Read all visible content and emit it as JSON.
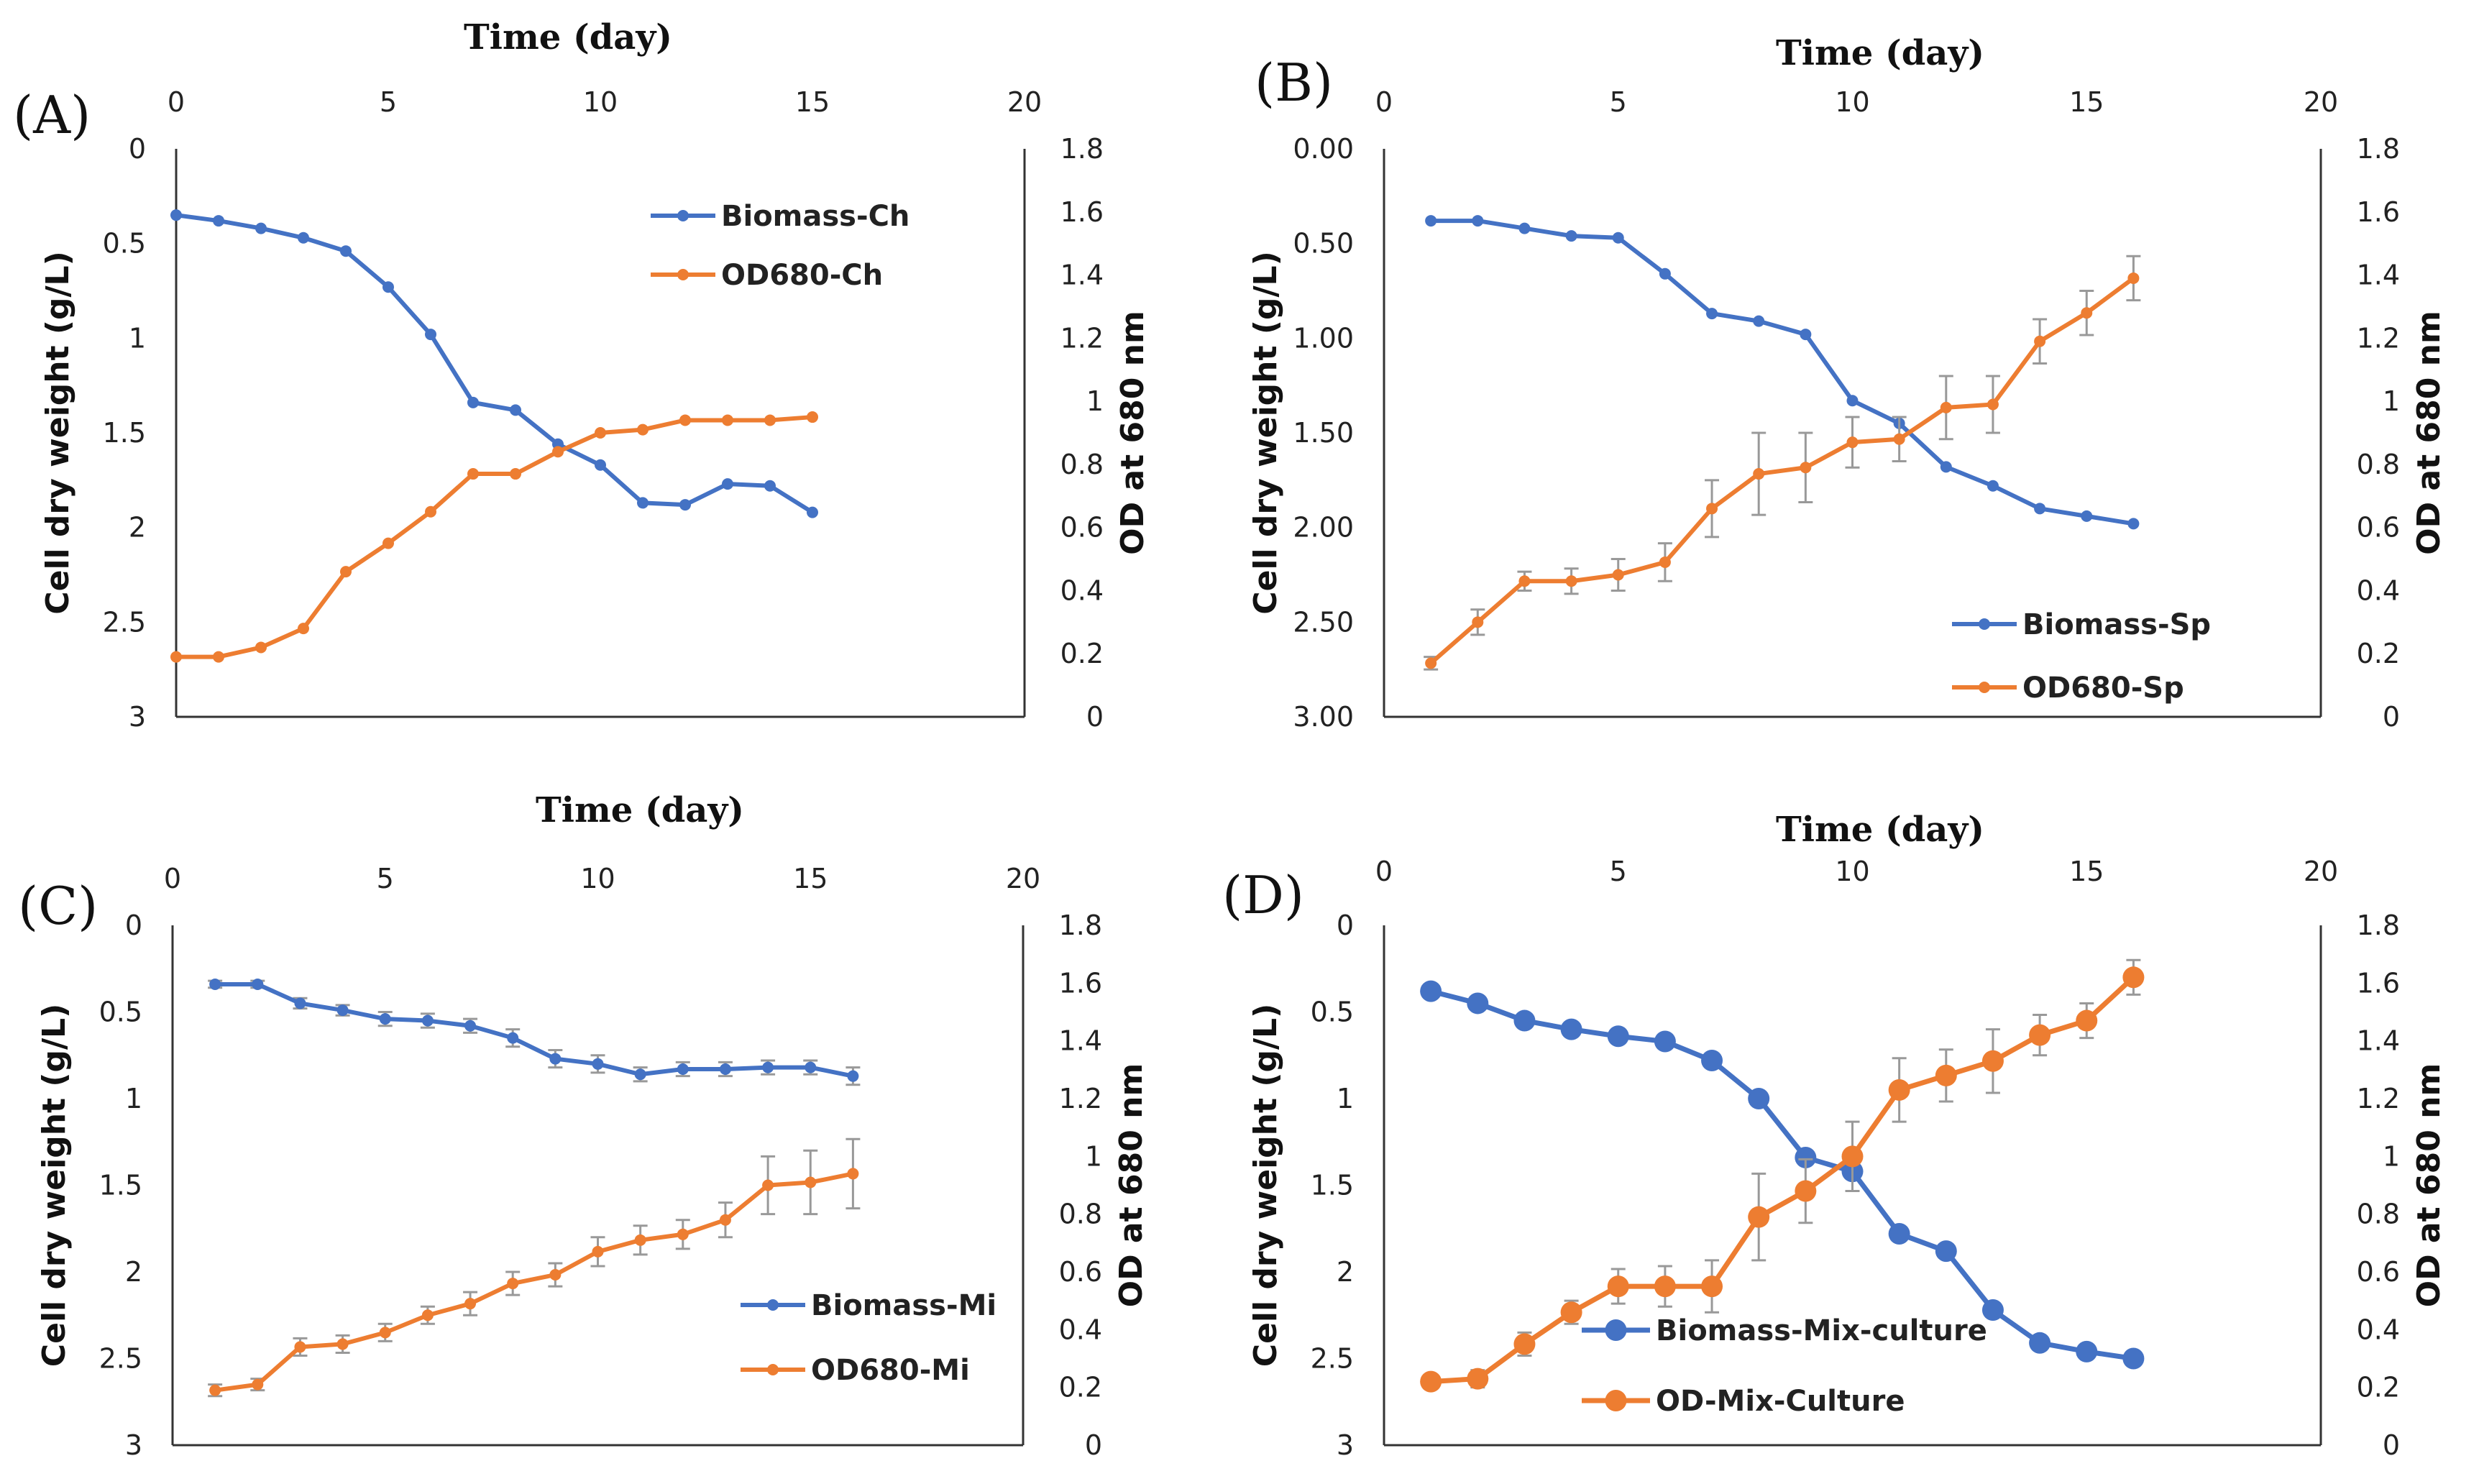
{
  "colors": {
    "biomass": "#4472C4",
    "od": "#ED7D31",
    "errorbar": "#999999"
  },
  "chart_data": [
    {
      "type": "line",
      "panel_label": "(A)",
      "title": "Time (day)",
      "xlabel": "Time (day)",
      "ylabel": "Cell dry weight (g/L)",
      "y2label": "OD at 680 nm",
      "xlim": [
        0,
        20
      ],
      "xticks": [
        "0",
        "5",
        "10",
        "15",
        "20"
      ],
      "ylim": [
        0,
        3
      ],
      "yinverted": true,
      "yticks": [
        "0",
        "0.5",
        "1",
        "1.5",
        "2",
        "2.5",
        "3"
      ],
      "y2lim": [
        0,
        1.8
      ],
      "y2ticks": [
        "0",
        "0.2",
        "0.4",
        "0.6",
        "0.8",
        "1",
        "1.2",
        "1.4",
        "1.6",
        "1.8"
      ],
      "legend_position": "top-right",
      "series": [
        {
          "name": "Biomass-Ch",
          "axis": "left",
          "marker": "small",
          "x": [
            0,
            1,
            2,
            3,
            4,
            5,
            6,
            7,
            8,
            9,
            10,
            11,
            12,
            13,
            14,
            15
          ],
          "values": [
            0.35,
            0.38,
            0.42,
            0.47,
            0.54,
            0.73,
            0.98,
            1.34,
            1.38,
            1.56,
            1.67,
            1.87,
            1.88,
            1.77,
            1.78,
            1.92
          ]
        },
        {
          "name": "OD680-Ch",
          "axis": "right",
          "marker": "small",
          "x": [
            0,
            1,
            2,
            3,
            4,
            5,
            6,
            7,
            8,
            9,
            10,
            11,
            12,
            13,
            14,
            15
          ],
          "values": [
            0.19,
            0.19,
            0.22,
            0.28,
            0.46,
            0.55,
            0.65,
            0.77,
            0.77,
            0.84,
            0.9,
            0.91,
            0.94,
            0.94,
            0.94,
            0.95
          ]
        }
      ]
    },
    {
      "type": "line",
      "panel_label": "(B)",
      "title": "Time (day)",
      "xlabel": "Time (day)",
      "ylabel": "Cell dry weight (g/L)",
      "y2label": "OD at 680 nm",
      "xlim": [
        0,
        20
      ],
      "xticks": [
        "0",
        "5",
        "10",
        "15",
        "20"
      ],
      "ylim": [
        0,
        3
      ],
      "yinverted": true,
      "yticks": [
        "0.00",
        "0.50",
        "1.00",
        "1.50",
        "2.00",
        "2.50",
        "3.00"
      ],
      "y2lim": [
        0,
        1.8
      ],
      "y2ticks": [
        "0",
        "0.2",
        "0.4",
        "0.6",
        "0.8",
        "1",
        "1.2",
        "1.4",
        "1.6",
        "1.8"
      ],
      "legend_position": "bottom-right",
      "series": [
        {
          "name": "Biomass-Sp",
          "axis": "left",
          "marker": "small",
          "x": [
            1,
            2,
            3,
            4,
            5,
            6,
            7,
            8,
            9,
            10,
            11,
            12,
            13,
            14,
            15,
            16
          ],
          "values": [
            0.38,
            0.38,
            0.42,
            0.46,
            0.47,
            0.66,
            0.87,
            0.91,
            0.98,
            1.33,
            1.45,
            1.68,
            1.78,
            1.9,
            1.94,
            1.98
          ]
        },
        {
          "name": "OD680-Sp",
          "axis": "right",
          "marker": "small",
          "x": [
            1,
            2,
            3,
            4,
            5,
            6,
            7,
            8,
            9,
            10,
            11,
            12,
            13,
            14,
            15,
            16
          ],
          "values": [
            0.17,
            0.3,
            0.43,
            0.43,
            0.45,
            0.49,
            0.66,
            0.77,
            0.79,
            0.87,
            0.88,
            0.98,
            0.99,
            1.19,
            1.28,
            1.39
          ],
          "errors": [
            0.02,
            0.04,
            0.03,
            0.04,
            0.05,
            0.06,
            0.09,
            0.13,
            0.11,
            0.08,
            0.07,
            0.1,
            0.09,
            0.07,
            0.07,
            0.07
          ]
        }
      ]
    },
    {
      "type": "line",
      "panel_label": "(C)",
      "title": "Time (day)",
      "xlabel": "Time (day)",
      "ylabel": "Cell dry weight (g/L)",
      "y2label": "OD at 680 nm",
      "xlim": [
        0,
        20
      ],
      "xticks": [
        "0",
        "5",
        "10",
        "15",
        "20"
      ],
      "ylim": [
        0,
        3
      ],
      "yinverted": true,
      "yticks": [
        "0",
        "0.5",
        "1",
        "1.5",
        "2",
        "2.5",
        "3"
      ],
      "y2lim": [
        0,
        1.8
      ],
      "y2ticks": [
        "0",
        "0.2",
        "0.4",
        "0.6",
        "0.8",
        "1",
        "1.2",
        "1.4",
        "1.6",
        "1.8"
      ],
      "legend_position": "bottom-right",
      "series": [
        {
          "name": "Biomass-Mi",
          "axis": "left",
          "marker": "small",
          "x": [
            1,
            2,
            3,
            4,
            5,
            6,
            7,
            8,
            9,
            10,
            11,
            12,
            13,
            14,
            15,
            16
          ],
          "values": [
            0.34,
            0.34,
            0.45,
            0.49,
            0.54,
            0.55,
            0.58,
            0.65,
            0.77,
            0.8,
            0.86,
            0.83,
            0.83,
            0.82,
            0.82,
            0.87
          ],
          "errors": [
            0.02,
            0.02,
            0.03,
            0.03,
            0.04,
            0.04,
            0.04,
            0.05,
            0.05,
            0.05,
            0.04,
            0.04,
            0.04,
            0.04,
            0.04,
            0.05
          ]
        },
        {
          "name": "OD680-Mi",
          "axis": "right",
          "marker": "small",
          "x": [
            1,
            2,
            3,
            4,
            5,
            6,
            7,
            8,
            9,
            10,
            11,
            12,
            13,
            14,
            15,
            16
          ],
          "values": [
            0.19,
            0.21,
            0.34,
            0.35,
            0.39,
            0.45,
            0.49,
            0.56,
            0.59,
            0.67,
            0.71,
            0.73,
            0.78,
            0.9,
            0.91,
            0.94
          ],
          "errors": [
            0.02,
            0.02,
            0.03,
            0.03,
            0.03,
            0.03,
            0.04,
            0.04,
            0.04,
            0.05,
            0.05,
            0.05,
            0.06,
            0.1,
            0.11,
            0.12
          ]
        }
      ]
    },
    {
      "type": "line",
      "panel_label": "(D)",
      "title": "Time (day)",
      "xlabel": "Time (day)",
      "ylabel": "Cell dry weight (g/L)",
      "y2label": "OD at 680 nm",
      "xlim": [
        0,
        20
      ],
      "xticks": [
        "0",
        "5",
        "10",
        "15",
        "20"
      ],
      "ylim": [
        0,
        3
      ],
      "yinverted": true,
      "yticks": [
        "0",
        "0.5",
        "1",
        "1.5",
        "2",
        "2.5",
        "3"
      ],
      "y2lim": [
        0,
        1.8
      ],
      "y2ticks": [
        "0",
        "0.2",
        "0.4",
        "0.6",
        "0.8",
        "1",
        "1.2",
        "1.4",
        "1.6",
        "1.8"
      ],
      "legend_position": "bottom-center",
      "series": [
        {
          "name": "Biomass-Mix-culture",
          "axis": "left",
          "marker": "large",
          "x": [
            1,
            2,
            3,
            4,
            5,
            6,
            7,
            8,
            9,
            10,
            11,
            12,
            13,
            14,
            15,
            16
          ],
          "values": [
            0.38,
            0.45,
            0.55,
            0.6,
            0.64,
            0.67,
            0.78,
            1.0,
            1.34,
            1.42,
            1.78,
            1.88,
            2.22,
            2.41,
            2.46,
            2.5
          ]
        },
        {
          "name": "OD-Mix-Culture",
          "axis": "right",
          "marker": "large",
          "x": [
            1,
            2,
            3,
            4,
            5,
            6,
            7,
            8,
            9,
            10,
            11,
            12,
            13,
            14,
            15,
            16
          ],
          "values": [
            0.22,
            0.23,
            0.35,
            0.46,
            0.55,
            0.55,
            0.55,
            0.79,
            0.88,
            1.0,
            1.23,
            1.28,
            1.33,
            1.42,
            1.47,
            1.62
          ],
          "errors": [
            0.02,
            0.03,
            0.04,
            0.04,
            0.06,
            0.07,
            0.09,
            0.15,
            0.11,
            0.12,
            0.11,
            0.09,
            0.11,
            0.07,
            0.06,
            0.06
          ]
        }
      ]
    }
  ]
}
